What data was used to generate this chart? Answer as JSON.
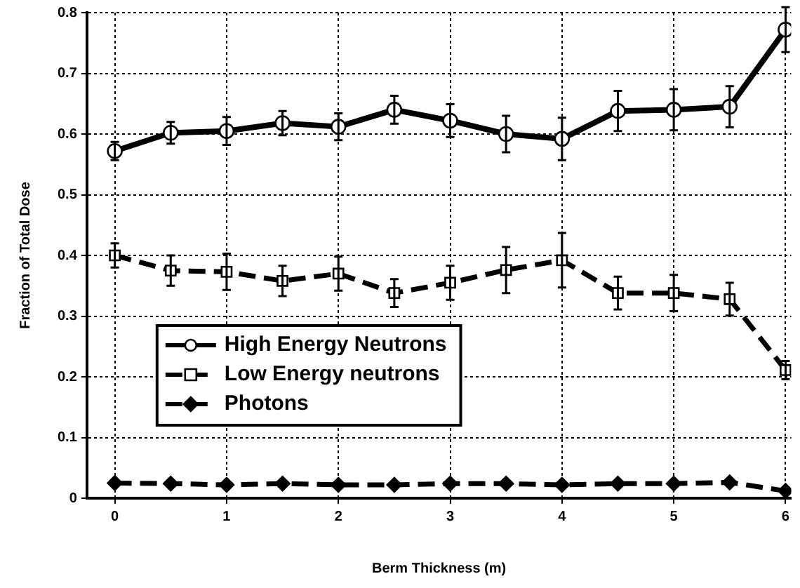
{
  "chart_data": {
    "type": "line",
    "xlabel": "Berm Thickness (m)",
    "ylabel": "Fraction of Total Dose",
    "x": [
      0,
      0.5,
      1,
      1.5,
      2,
      2.5,
      3,
      3.5,
      4,
      4.5,
      5,
      5.5,
      6
    ],
    "series": [
      {
        "name": "High Energy Neutrons",
        "color": "#000000",
        "marker": "circle",
        "line_style": "solid",
        "values": [
          0.572,
          0.602,
          0.605,
          0.618,
          0.612,
          0.64,
          0.622,
          0.6,
          0.592,
          0.638,
          0.64,
          0.645,
          0.772
        ],
        "errors": [
          0.015,
          0.018,
          0.023,
          0.02,
          0.022,
          0.023,
          0.027,
          0.03,
          0.035,
          0.033,
          0.034,
          0.034,
          0.037
        ]
      },
      {
        "name": "Low Energy neutrons",
        "color": "#000000",
        "marker": "square",
        "line_style": "dashed",
        "values": [
          0.4,
          0.375,
          0.373,
          0.358,
          0.37,
          0.338,
          0.355,
          0.376,
          0.392,
          0.338,
          0.338,
          0.328,
          0.211
        ],
        "errors": [
          0.02,
          0.025,
          0.03,
          0.025,
          0.028,
          0.023,
          0.028,
          0.038,
          0.045,
          0.027,
          0.03,
          0.027,
          0.015
        ]
      },
      {
        "name": "Photons",
        "color": "#000000",
        "marker": "diamond",
        "line_style": "dashed",
        "values": [
          0.025,
          0.024,
          0.022,
          0.024,
          0.022,
          0.022,
          0.024,
          0.024,
          0.022,
          0.024,
          0.024,
          0.026,
          0.012
        ]
      }
    ],
    "xlim": [
      -0.25,
      6.05
    ],
    "xticks": [
      0,
      1,
      2,
      3,
      4,
      5,
      6
    ],
    "ylim": [
      0,
      0.8
    ],
    "yticks": [
      0,
      0.1,
      0.2,
      0.3,
      0.4,
      0.5,
      0.6,
      0.7,
      0.8
    ],
    "grid": true,
    "legend": "center left"
  }
}
